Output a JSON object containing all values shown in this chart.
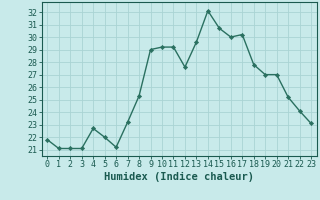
{
  "x": [
    0,
    1,
    2,
    3,
    4,
    5,
    6,
    7,
    8,
    9,
    10,
    11,
    12,
    13,
    14,
    15,
    16,
    17,
    18,
    19,
    20,
    21,
    22,
    23
  ],
  "y": [
    21.8,
    21.1,
    21.1,
    21.1,
    22.7,
    22.0,
    21.2,
    23.2,
    25.3,
    29.0,
    29.2,
    29.2,
    27.6,
    29.6,
    32.1,
    30.7,
    30.0,
    30.2,
    27.8,
    27.0,
    27.0,
    25.2,
    24.1,
    23.1
  ],
  "line_color": "#2a7060",
  "marker": "D",
  "marker_size": 2.2,
  "line_width": 1.0,
  "bg_color": "#c8eaea",
  "grid_color": "#aad4d4",
  "xlabel": "Humidex (Indice chaleur)",
  "ylabel_ticks": [
    21,
    22,
    23,
    24,
    25,
    26,
    27,
    28,
    29,
    30,
    31,
    32
  ],
  "ylim": [
    20.5,
    32.8
  ],
  "xlim": [
    -0.5,
    23.5
  ],
  "tick_color": "#1a5a50",
  "tick_fontsize": 6.0,
  "xlabel_fontsize": 7.5,
  "axis_color": "#1a5a50"
}
